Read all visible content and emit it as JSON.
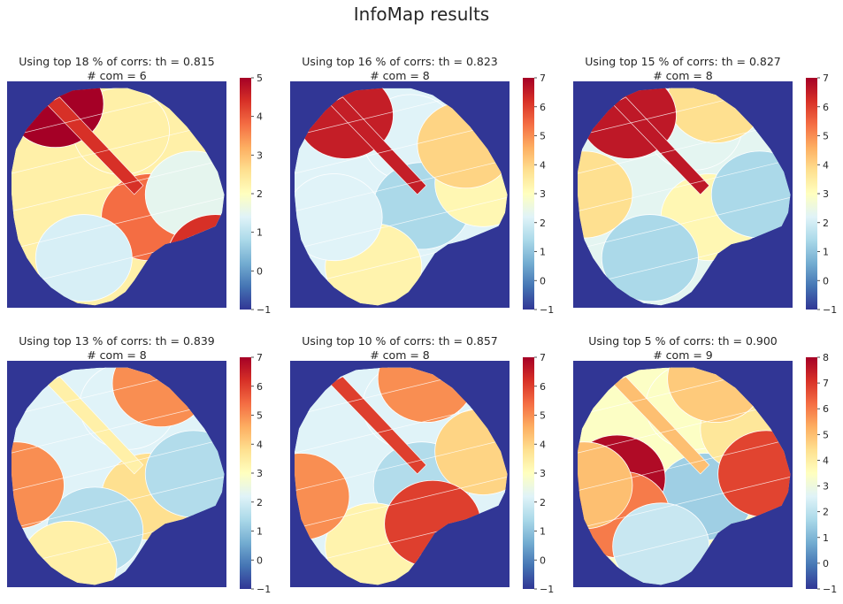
{
  "figure": {
    "title": "InfoMap results"
  },
  "chart_data": [
    {
      "type": "heatmap",
      "title": [
        "Using top 18 % of corrs: th = 0.815",
        "# com = 6"
      ],
      "colorbar": {
        "min": -1,
        "max": 5,
        "ticks": [
          -1,
          0,
          1,
          2,
          3,
          4,
          5
        ]
      },
      "background_value": -1,
      "regions": [
        {
          "cx": 0.22,
          "cy": 0.38,
          "value": 2.3
        },
        {
          "cx": 0.52,
          "cy": 0.22,
          "value": 2.3
        },
        {
          "cx": 0.65,
          "cy": 0.6,
          "value": 3.8
        },
        {
          "cx": 0.85,
          "cy": 0.5,
          "value": 1.5
        },
        {
          "cx": 0.35,
          "cy": 0.78,
          "value": 1.3
        },
        {
          "cx": 0.22,
          "cy": 0.1,
          "value": 5
        },
        {
          "cx": 0.95,
          "cy": 0.78,
          "value": 4.4
        }
      ]
    },
    {
      "type": "heatmap",
      "title": [
        "Using top 16 % of corrs: th = 0.823",
        "# com = 8"
      ],
      "colorbar": {
        "min": -1,
        "max": 7,
        "ticks": [
          -1,
          0,
          1,
          2,
          3,
          4,
          5,
          6,
          7
        ]
      },
      "background_value": -1,
      "regions": [
        {
          "cx": 0.3,
          "cy": 0.35,
          "value": 2.2
        },
        {
          "cx": 0.55,
          "cy": 0.25,
          "value": 2.2
        },
        {
          "cx": 0.6,
          "cy": 0.55,
          "value": 1.4
        },
        {
          "cx": 0.88,
          "cy": 0.45,
          "value": 3.2
        },
        {
          "cx": 0.8,
          "cy": 0.28,
          "value": 4
        },
        {
          "cx": 0.38,
          "cy": 0.82,
          "value": 3.3
        },
        {
          "cx": 0.2,
          "cy": 0.6,
          "value": 2.2
        },
        {
          "cx": 0.25,
          "cy": 0.15,
          "value": 6.5
        }
      ]
    },
    {
      "type": "heatmap",
      "title": [
        "Using top 15 % of corrs: th = 0.827",
        "# com = 8"
      ],
      "colorbar": {
        "min": -1,
        "max": 7,
        "ticks": [
          -1,
          0,
          1,
          2,
          3,
          4,
          5,
          6,
          7
        ]
      },
      "background_value": -1,
      "regions": [
        {
          "cx": 0.3,
          "cy": 0.35,
          "value": 2.3
        },
        {
          "cx": 0.55,
          "cy": 0.2,
          "value": 2.3
        },
        {
          "cx": 0.62,
          "cy": 0.6,
          "value": 3.2
        },
        {
          "cx": 0.85,
          "cy": 0.5,
          "value": 1.4
        },
        {
          "cx": 0.35,
          "cy": 0.78,
          "value": 1.4
        },
        {
          "cx": 0.05,
          "cy": 0.5,
          "value": 3.8
        },
        {
          "cx": 0.65,
          "cy": 0.08,
          "value": 3.8
        },
        {
          "cx": 0.25,
          "cy": 0.15,
          "value": 6.6
        }
      ]
    },
    {
      "type": "heatmap",
      "title": [
        "Using top 13 % of corrs: th = 0.839",
        "# com = 8"
      ],
      "colorbar": {
        "min": -1,
        "max": 7,
        "ticks": [
          -1,
          0,
          1,
          2,
          3,
          4,
          5,
          6,
          7
        ]
      },
      "background_value": -1,
      "regions": [
        {
          "cx": 0.3,
          "cy": 0.3,
          "value": 2.2
        },
        {
          "cx": 0.55,
          "cy": 0.2,
          "value": 2.2
        },
        {
          "cx": 0.65,
          "cy": 0.6,
          "value": 3.8
        },
        {
          "cx": 0.85,
          "cy": 0.5,
          "value": 1.5
        },
        {
          "cx": 0.4,
          "cy": 0.75,
          "value": 1.5
        },
        {
          "cx": 0.04,
          "cy": 0.55,
          "value": 5
        },
        {
          "cx": 0.7,
          "cy": 0.1,
          "value": 5
        },
        {
          "cx": 0.28,
          "cy": 0.9,
          "value": 3.4
        }
      ]
    },
    {
      "type": "heatmap",
      "title": [
        "Using top 10 % of corrs: th = 0.857",
        "# com = 8"
      ],
      "colorbar": {
        "min": -1,
        "max": 7,
        "ticks": [
          -1,
          0,
          1,
          2,
          3,
          4,
          5,
          6,
          7
        ]
      },
      "background_value": -1,
      "regions": [
        {
          "cx": 0.3,
          "cy": 0.3,
          "value": 2.2
        },
        {
          "cx": 0.55,
          "cy": 0.2,
          "value": 2.2
        },
        {
          "cx": 0.6,
          "cy": 0.55,
          "value": 1.5
        },
        {
          "cx": 0.88,
          "cy": 0.4,
          "value": 4
        },
        {
          "cx": 0.38,
          "cy": 0.82,
          "value": 3.3
        },
        {
          "cx": 0.05,
          "cy": 0.6,
          "value": 5
        },
        {
          "cx": 0.62,
          "cy": 0.08,
          "value": 5
        },
        {
          "cx": 0.65,
          "cy": 0.72,
          "value": 6
        }
      ]
    },
    {
      "type": "heatmap",
      "title": [
        "Using top 5 % of corrs: th = 0.900",
        "# com = 9"
      ],
      "colorbar": {
        "min": -1,
        "max": 8,
        "ticks": [
          -1,
          0,
          1,
          2,
          3,
          4,
          5,
          6,
          7,
          8
        ]
      },
      "background_value": -1,
      "regions": [
        {
          "cx": 0.3,
          "cy": 0.3,
          "value": 3.4
        },
        {
          "cx": 0.55,
          "cy": 0.2,
          "value": 3.4
        },
        {
          "cx": 0.6,
          "cy": 0.6,
          "value": 1.5
        },
        {
          "cx": 0.8,
          "cy": 0.3,
          "value": 4.2
        },
        {
          "cx": 0.88,
          "cy": 0.5,
          "value": 6.8
        },
        {
          "cx": 0.2,
          "cy": 0.52,
          "value": 7.8
        },
        {
          "cx": 0.22,
          "cy": 0.68,
          "value": 6
        },
        {
          "cx": 0.05,
          "cy": 0.55,
          "value": 5
        },
        {
          "cx": 0.4,
          "cy": 0.82,
          "value": 2.2
        },
        {
          "cx": 0.65,
          "cy": 0.08,
          "value": 4.8
        }
      ]
    }
  ]
}
